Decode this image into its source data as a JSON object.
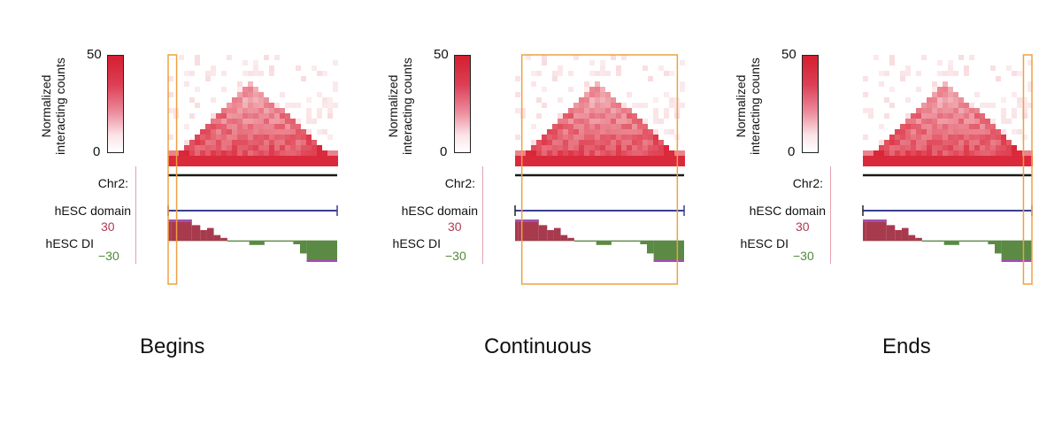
{
  "figure": {
    "colorbar": {
      "label_line1": "Normalized",
      "label_line2": "interacting counts",
      "max": "50",
      "min": "0",
      "colors": [
        "#ffffff",
        "#d41f2e"
      ]
    },
    "tracks": {
      "chromosome_label": "Chr2:",
      "domain_label": "hESC domain",
      "di_label": "hESC DI",
      "di_max": "30",
      "di_min": "−30"
    },
    "colors": {
      "heatmap": "#d92a3f",
      "chrom_line": "#1a1a1a",
      "domain_line": "#3a3f8f",
      "di_positive": "#a83a4e",
      "di_negative": "#5a8a44",
      "di_extreme": "#a24fb0",
      "highlight_box": "#f0a040"
    },
    "panels": [
      {
        "caption": "Begins",
        "highlight": {
          "start": 0.0,
          "end": 0.05
        }
      },
      {
        "caption": "Continuous",
        "highlight": {
          "start": 0.04,
          "end": 0.96
        }
      },
      {
        "caption": "Ends",
        "highlight": {
          "start": 0.95,
          "end": 1.0
        }
      }
    ]
  },
  "chart_data": {
    "type": "heatmap",
    "title": "",
    "colorbar_label": "Normalized interacting counts",
    "colorbar_range": [
      0,
      50
    ],
    "di_range": [
      -30,
      30
    ],
    "di_profile": [
      {
        "start": 0.0,
        "end": 0.02,
        "value": 30
      },
      {
        "start": 0.02,
        "end": 0.14,
        "value": 30
      },
      {
        "start": 0.14,
        "end": 0.19,
        "value": 22
      },
      {
        "start": 0.19,
        "end": 0.23,
        "value": 15
      },
      {
        "start": 0.23,
        "end": 0.27,
        "value": 18
      },
      {
        "start": 0.27,
        "end": 0.31,
        "value": 8
      },
      {
        "start": 0.31,
        "end": 0.35,
        "value": 4
      },
      {
        "start": 0.35,
        "end": 0.48,
        "value": -1
      },
      {
        "start": 0.48,
        "end": 0.57,
        "value": -6
      },
      {
        "start": 0.57,
        "end": 0.74,
        "value": -1
      },
      {
        "start": 0.74,
        "end": 0.78,
        "value": -5
      },
      {
        "start": 0.78,
        "end": 0.82,
        "value": -18
      },
      {
        "start": 0.82,
        "end": 1.0,
        "value": -30
      }
    ],
    "captions": [
      "Begins",
      "Continuous",
      "Ends"
    ]
  }
}
